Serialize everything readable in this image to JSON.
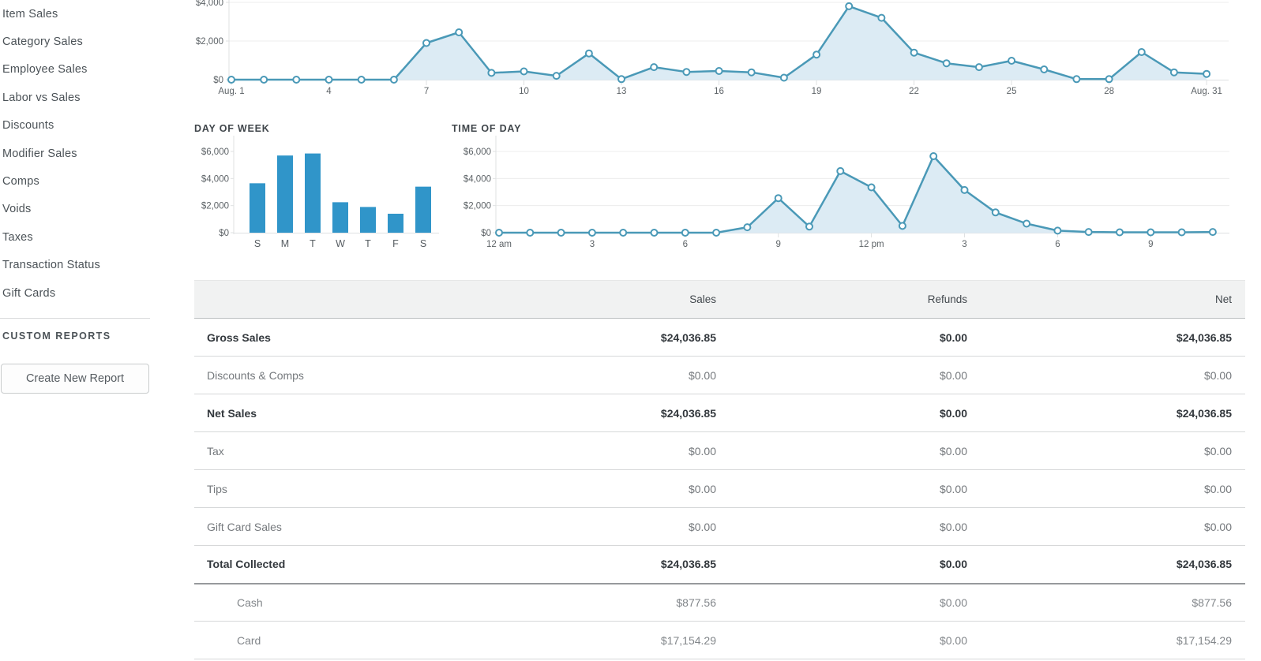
{
  "sidebar": {
    "items": [
      "Item Sales",
      "Category Sales",
      "Employee Sales",
      "Labor vs Sales",
      "Discounts",
      "Modifier Sales",
      "Comps",
      "Voids",
      "Taxes",
      "Transaction Status",
      "Gift Cards"
    ],
    "custom_reports_header": "CUSTOM REPORTS",
    "create_report_button_label": "Create New Report"
  },
  "colors": {
    "bar": "#3095c9",
    "line": "#4a99b7",
    "area_fill": "#dcebf4",
    "grid": "#ececec",
    "axis": "#dfe1e2"
  },
  "chart_data": [
    {
      "id": "daily",
      "type": "area",
      "title": "",
      "x_unit": "day of August",
      "values": [
        0,
        0,
        0,
        0,
        0,
        0,
        1900,
        2450,
        350,
        430,
        200,
        1360,
        30,
        650,
        400,
        450,
        380,
        100,
        1300,
        3800,
        3200,
        1400,
        850,
        650,
        980,
        530,
        30,
        30,
        1430,
        380,
        300
      ],
      "x_tick_labels": [
        "Aug. 1",
        "4",
        "7",
        "10",
        "13",
        "16",
        "19",
        "22",
        "25",
        "28",
        "Aug. 31"
      ],
      "x_tick_indices": [
        0,
        3,
        6,
        9,
        12,
        15,
        18,
        21,
        24,
        27,
        30
      ],
      "y_ticks": [
        {
          "value": 0,
          "label": "$0"
        },
        {
          "value": 2000,
          "label": "$2,000"
        },
        {
          "value": 4000,
          "label": "$4,000"
        }
      ],
      "ylim": [
        0,
        4000
      ],
      "grid": true,
      "legend": "none"
    },
    {
      "id": "day_of_week",
      "type": "bar",
      "title": "DAY OF WEEK",
      "categories": [
        "S",
        "M",
        "T",
        "W",
        "T",
        "F",
        "S"
      ],
      "values": [
        3650,
        5700,
        5850,
        2250,
        1900,
        1400,
        3400
      ],
      "y_ticks": [
        {
          "value": 0,
          "label": "$0"
        },
        {
          "value": 2000,
          "label": "$2,000"
        },
        {
          "value": 4000,
          "label": "$4,000"
        },
        {
          "value": 6000,
          "label": "$6,000"
        }
      ],
      "ylim": [
        0,
        6000
      ],
      "grid": false,
      "legend": "none"
    },
    {
      "id": "time_of_day",
      "type": "area",
      "title": "TIME OF DAY",
      "x_unit": "hour of day",
      "values": [
        0,
        0,
        0,
        0,
        0,
        0,
        0,
        0,
        400,
        2550,
        450,
        4550,
        3350,
        500,
        5650,
        3150,
        1500,
        670,
        150,
        50,
        30,
        30,
        30,
        50
      ],
      "x_tick_labels": [
        "12 am",
        "3",
        "6",
        "9",
        "12 pm",
        "3",
        "6",
        "9"
      ],
      "x_tick_indices": [
        0,
        3,
        6,
        9,
        12,
        15,
        18,
        21
      ],
      "y_ticks": [
        {
          "value": 0,
          "label": "$0"
        },
        {
          "value": 2000,
          "label": "$2,000"
        },
        {
          "value": 4000,
          "label": "$4,000"
        },
        {
          "value": 6000,
          "label": "$6,000"
        }
      ],
      "ylim": [
        0,
        6000
      ],
      "grid": true,
      "legend": "none"
    }
  ],
  "table": {
    "columns": [
      "",
      "Sales",
      "Refunds",
      "Net"
    ],
    "rows": [
      {
        "label": "Gross Sales",
        "sales": "$24,036.85",
        "refunds": "$0.00",
        "net": "$24,036.85",
        "bold": true
      },
      {
        "label": "Discounts & Comps",
        "sales": "$0.00",
        "refunds": "$0.00",
        "net": "$0.00"
      },
      {
        "label": "Net Sales",
        "sales": "$24,036.85",
        "refunds": "$0.00",
        "net": "$24,036.85",
        "bold": true
      },
      {
        "label": "Tax",
        "sales": "$0.00",
        "refunds": "$0.00",
        "net": "$0.00"
      },
      {
        "label": "Tips",
        "sales": "$0.00",
        "refunds": "$0.00",
        "net": "$0.00"
      },
      {
        "label": "Gift Card Sales",
        "sales": "$0.00",
        "refunds": "$0.00",
        "net": "$0.00"
      },
      {
        "label": "Total Collected",
        "sales": "$24,036.85",
        "refunds": "$0.00",
        "net": "$24,036.85",
        "bold": true,
        "total": true
      },
      {
        "label": "Cash",
        "sales": "$877.56",
        "refunds": "$0.00",
        "net": "$877.56",
        "indent": true
      },
      {
        "label": "Card",
        "sales": "$17,154.29",
        "refunds": "$0.00",
        "net": "$17,154.29",
        "indent": true
      }
    ]
  }
}
